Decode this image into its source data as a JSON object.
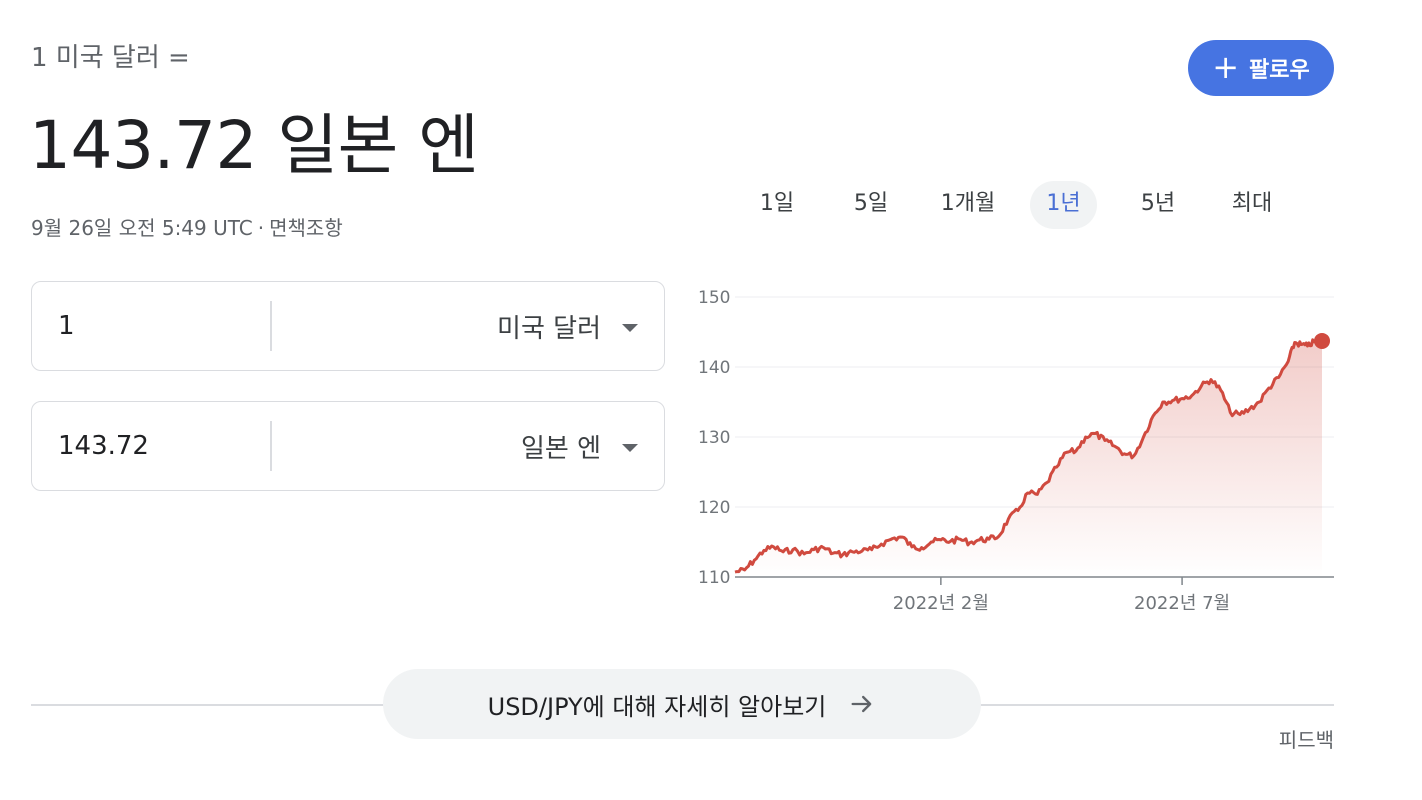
{
  "header": {
    "subtitle": "1 미국 달러 =",
    "main_value": "143.72 일본 엔",
    "timestamp": "9월 26일 오전 5:49 UTC",
    "separator": "·",
    "disclaimer": "면책조항"
  },
  "follow_button": {
    "icon": "plus-icon",
    "label": "팔로우",
    "color": "#4674e2"
  },
  "converter": {
    "from": {
      "amount": "1",
      "currency": "미국 달러"
    },
    "to": {
      "amount": "143.72",
      "currency": "일본 엔"
    }
  },
  "range_tabs": [
    {
      "label": "1일",
      "active": false
    },
    {
      "label": "5일",
      "active": false
    },
    {
      "label": "1개월",
      "active": false
    },
    {
      "label": "1년",
      "active": true
    },
    {
      "label": "5년",
      "active": false
    },
    {
      "label": "최대",
      "active": false
    }
  ],
  "chart_data": {
    "type": "line",
    "title": "",
    "xlabel": "",
    "ylabel": "",
    "series_name": "USD/JPY",
    "color": "#d04a3f",
    "ylim": [
      110,
      150
    ],
    "y_ticks": [
      "150",
      "140",
      "130",
      "120",
      "110"
    ],
    "y_tick_values": [
      150,
      140,
      130,
      120,
      110
    ],
    "x_tick_labels": [
      "2022년 2월",
      "2022년 7월"
    ],
    "x_tick_dates": [
      "2022-02-01",
      "2022-07-01"
    ],
    "x_range": [
      "2021-09-26",
      "2022-09-26"
    ],
    "grid": true,
    "points": [
      [
        "2021-09-26",
        110.7
      ],
      [
        "2021-10-02",
        111.0
      ],
      [
        "2021-10-08",
        112.4
      ],
      [
        "2021-10-14",
        113.8
      ],
      [
        "2021-10-20",
        114.3
      ],
      [
        "2021-10-26",
        113.6
      ],
      [
        "2021-11-01",
        113.9
      ],
      [
        "2021-11-08",
        113.3
      ],
      [
        "2021-11-14",
        113.9
      ],
      [
        "2021-11-20",
        114.2
      ],
      [
        "2021-11-26",
        113.4
      ],
      [
        "2021-12-02",
        113.2
      ],
      [
        "2021-12-08",
        113.6
      ],
      [
        "2021-12-14",
        113.7
      ],
      [
        "2021-12-20",
        113.9
      ],
      [
        "2021-12-26",
        114.7
      ],
      [
        "2022-01-02",
        115.5
      ],
      [
        "2022-01-08",
        115.7
      ],
      [
        "2022-01-14",
        114.3
      ],
      [
        "2022-01-20",
        114.2
      ],
      [
        "2022-01-26",
        115.0
      ],
      [
        "2022-02-01",
        115.3
      ],
      [
        "2022-02-07",
        115.1
      ],
      [
        "2022-02-13",
        115.4
      ],
      [
        "2022-02-19",
        114.9
      ],
      [
        "2022-02-25",
        115.3
      ],
      [
        "2022-03-03",
        115.4
      ],
      [
        "2022-03-09",
        115.8
      ],
      [
        "2022-03-15",
        118.3
      ],
      [
        "2022-03-21",
        119.5
      ],
      [
        "2022-03-27",
        122.0
      ],
      [
        "2022-04-02",
        121.8
      ],
      [
        "2022-04-08",
        123.5
      ],
      [
        "2022-04-14",
        125.7
      ],
      [
        "2022-04-20",
        127.8
      ],
      [
        "2022-04-26",
        128.0
      ],
      [
        "2022-05-02",
        130.0
      ],
      [
        "2022-05-08",
        130.5
      ],
      [
        "2022-05-14",
        129.5
      ],
      [
        "2022-05-20",
        128.7
      ],
      [
        "2022-05-26",
        127.6
      ],
      [
        "2022-06-01",
        127.3
      ],
      [
        "2022-06-07",
        130.0
      ],
      [
        "2022-06-13",
        133.0
      ],
      [
        "2022-06-19",
        135.0
      ],
      [
        "2022-06-25",
        135.2
      ],
      [
        "2022-07-01",
        135.5
      ],
      [
        "2022-07-07",
        135.9
      ],
      [
        "2022-07-13",
        137.3
      ],
      [
        "2022-07-19",
        138.2
      ],
      [
        "2022-07-25",
        136.7
      ],
      [
        "2022-07-31",
        133.5
      ],
      [
        "2022-08-06",
        133.2
      ],
      [
        "2022-08-12",
        134.0
      ],
      [
        "2022-08-18",
        135.0
      ],
      [
        "2022-08-24",
        137.0
      ],
      [
        "2022-08-30",
        138.5
      ],
      [
        "2022-09-05",
        140.8
      ],
      [
        "2022-09-09",
        143.5
      ],
      [
        "2022-09-13",
        143.2
      ],
      [
        "2022-09-17",
        143.0
      ],
      [
        "2022-09-21",
        143.6
      ],
      [
        "2022-09-26",
        143.72
      ]
    ]
  },
  "learn_more": {
    "label": "USD/JPY에 대해 자세히 알아보기",
    "icon": "arrow-right-icon"
  },
  "feedback": "피드백"
}
